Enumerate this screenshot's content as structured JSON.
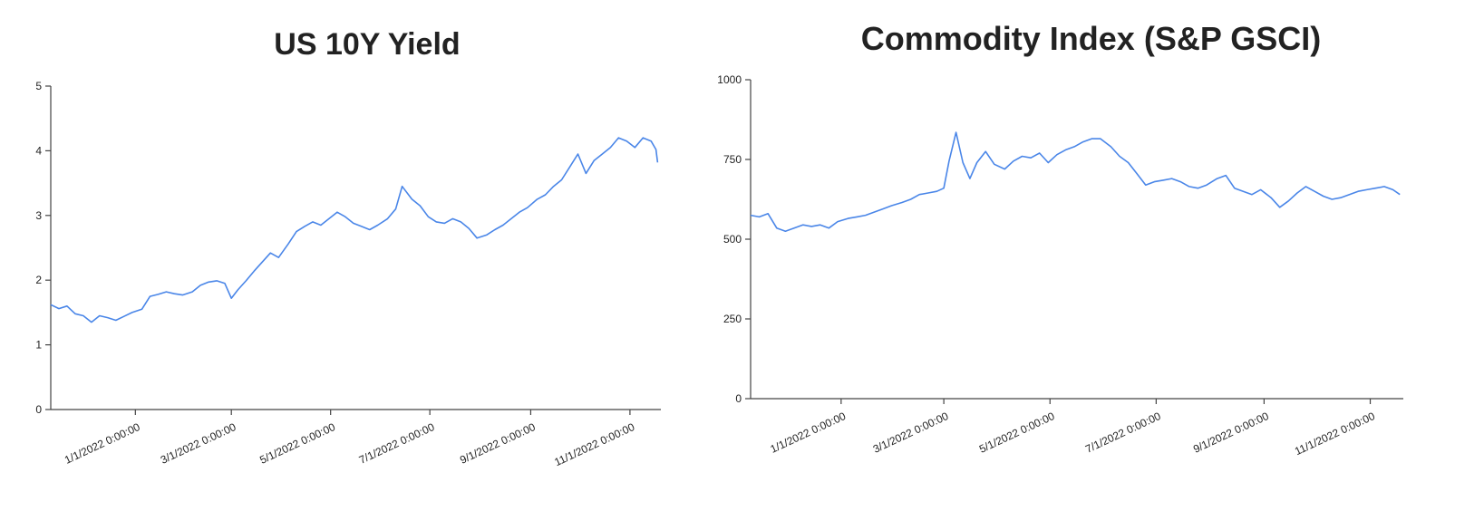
{
  "colors": {
    "series": "#4a86e8",
    "axis": "#444444",
    "text": "#222222"
  },
  "chart_data": [
    {
      "type": "line",
      "title": "US 10Y Yield",
      "xlabel": "",
      "ylabel": "",
      "ylim": [
        0,
        5
      ],
      "xlim": [
        "2021-11-10",
        "2022-11-20"
      ],
      "y_ticks": [
        "0",
        "1",
        "2",
        "3",
        "4",
        "5"
      ],
      "x_ticks": [
        {
          "date": "2022-01-01",
          "label": "1/1/2022 0:00:00"
        },
        {
          "date": "2022-03-01",
          "label": "3/1/2022 0:00:00"
        },
        {
          "date": "2022-05-01",
          "label": "5/1/2022 0:00:00"
        },
        {
          "date": "2022-07-01",
          "label": "7/1/2022 0:00:00"
        },
        {
          "date": "2022-09-01",
          "label": "9/1/2022 0:00:00"
        },
        {
          "date": "2022-11-01",
          "label": "11/1/2022 0:00:00"
        }
      ],
      "grid": false,
      "series": [
        {
          "x": [
            "2021-11-10",
            "2021-11-15",
            "2021-11-20",
            "2021-11-25",
            "2021-11-30",
            "2021-12-05",
            "2021-12-10",
            "2021-12-15",
            "2021-12-20",
            "2021-12-25",
            "2021-12-30",
            "2022-01-05",
            "2022-01-10",
            "2022-01-15",
            "2022-01-20",
            "2022-01-25",
            "2022-01-30",
            "2022-02-05",
            "2022-02-10",
            "2022-02-15",
            "2022-02-20",
            "2022-02-25",
            "2022-03-01",
            "2022-03-05",
            "2022-03-10",
            "2022-03-15",
            "2022-03-20",
            "2022-03-25",
            "2022-03-30",
            "2022-04-05",
            "2022-04-10",
            "2022-04-15",
            "2022-04-20",
            "2022-04-25",
            "2022-04-30",
            "2022-05-05",
            "2022-05-10",
            "2022-05-15",
            "2022-05-20",
            "2022-05-25",
            "2022-05-30",
            "2022-06-05",
            "2022-06-10",
            "2022-06-14",
            "2022-06-20",
            "2022-06-25",
            "2022-06-30",
            "2022-07-05",
            "2022-07-10",
            "2022-07-15",
            "2022-07-20",
            "2022-07-25",
            "2022-07-30",
            "2022-08-05",
            "2022-08-10",
            "2022-08-15",
            "2022-08-20",
            "2022-08-25",
            "2022-08-30",
            "2022-09-05",
            "2022-09-10",
            "2022-09-15",
            "2022-09-20",
            "2022-09-25",
            "2022-09-30",
            "2022-10-05",
            "2022-10-10",
            "2022-10-15",
            "2022-10-20",
            "2022-10-25",
            "2022-10-30",
            "2022-11-04",
            "2022-11-09",
            "2022-11-14",
            "2022-11-17",
            "2022-11-18"
          ],
          "values": [
            1.62,
            1.56,
            1.6,
            1.48,
            1.45,
            1.35,
            1.45,
            1.42,
            1.38,
            1.44,
            1.5,
            1.55,
            1.75,
            1.78,
            1.82,
            1.79,
            1.77,
            1.82,
            1.92,
            1.97,
            1.99,
            1.95,
            1.72,
            1.85,
            1.99,
            2.14,
            2.28,
            2.42,
            2.35,
            2.56,
            2.75,
            2.83,
            2.9,
            2.85,
            2.95,
            3.05,
            2.98,
            2.88,
            2.83,
            2.78,
            2.85,
            2.95,
            3.1,
            3.45,
            3.25,
            3.15,
            2.98,
            2.9,
            2.88,
            2.95,
            2.9,
            2.8,
            2.65,
            2.7,
            2.78,
            2.85,
            2.95,
            3.05,
            3.12,
            3.25,
            3.32,
            3.45,
            3.55,
            3.75,
            3.95,
            3.65,
            3.85,
            3.95,
            4.05,
            4.2,
            4.15,
            4.05,
            4.2,
            4.15,
            4.02,
            3.82
          ]
        }
      ]
    },
    {
      "type": "line",
      "title": "Commodity Index (S&P GSCI)",
      "xlabel": "",
      "ylabel": "",
      "ylim": [
        0,
        1000
      ],
      "xlim": [
        "2021-11-10",
        "2022-11-20"
      ],
      "y_ticks": [
        "0",
        "250",
        "500",
        "750",
        "1000"
      ],
      "x_ticks": [
        {
          "date": "2022-01-01",
          "label": "1/1/2022 0:00:00"
        },
        {
          "date": "2022-03-01",
          "label": "3/1/2022 0:00:00"
        },
        {
          "date": "2022-05-01",
          "label": "5/1/2022 0:00:00"
        },
        {
          "date": "2022-07-01",
          "label": "7/1/2022 0:00:00"
        },
        {
          "date": "2022-09-01",
          "label": "9/1/2022 0:00:00"
        },
        {
          "date": "2022-11-01",
          "label": "11/1/2022 0:00:00"
        }
      ],
      "grid": false,
      "series": [
        {
          "x": [
            "2021-11-10",
            "2021-11-15",
            "2021-11-20",
            "2021-11-25",
            "2021-11-30",
            "2021-12-05",
            "2021-12-10",
            "2021-12-15",
            "2021-12-20",
            "2021-12-25",
            "2021-12-30",
            "2022-01-05",
            "2022-01-10",
            "2022-01-15",
            "2022-01-20",
            "2022-01-25",
            "2022-01-30",
            "2022-02-05",
            "2022-02-10",
            "2022-02-15",
            "2022-02-20",
            "2022-02-25",
            "2022-03-01",
            "2022-03-04",
            "2022-03-08",
            "2022-03-12",
            "2022-03-16",
            "2022-03-20",
            "2022-03-25",
            "2022-03-30",
            "2022-04-05",
            "2022-04-10",
            "2022-04-15",
            "2022-04-20",
            "2022-04-25",
            "2022-04-30",
            "2022-05-05",
            "2022-05-10",
            "2022-05-15",
            "2022-05-20",
            "2022-05-25",
            "2022-05-30",
            "2022-06-05",
            "2022-06-10",
            "2022-06-15",
            "2022-06-20",
            "2022-06-25",
            "2022-06-30",
            "2022-07-05",
            "2022-07-10",
            "2022-07-15",
            "2022-07-20",
            "2022-07-25",
            "2022-07-30",
            "2022-08-05",
            "2022-08-10",
            "2022-08-15",
            "2022-08-20",
            "2022-08-25",
            "2022-08-30",
            "2022-09-05",
            "2022-09-10",
            "2022-09-15",
            "2022-09-20",
            "2022-09-25",
            "2022-09-30",
            "2022-10-05",
            "2022-10-10",
            "2022-10-15",
            "2022-10-20",
            "2022-10-25",
            "2022-10-30",
            "2022-11-04",
            "2022-11-09",
            "2022-11-14",
            "2022-11-18"
          ],
          "values": [
            575,
            570,
            580,
            535,
            525,
            535,
            545,
            540,
            545,
            535,
            555,
            565,
            570,
            575,
            585,
            595,
            605,
            615,
            625,
            640,
            645,
            650,
            660,
            745,
            835,
            740,
            690,
            740,
            775,
            735,
            720,
            745,
            760,
            755,
            770,
            740,
            765,
            780,
            790,
            805,
            815,
            815,
            790,
            760,
            740,
            705,
            670,
            680,
            685,
            690,
            680,
            665,
            660,
            670,
            690,
            700,
            660,
            650,
            640,
            655,
            630,
            600,
            620,
            645,
            665,
            650,
            635,
            625,
            630,
            640,
            650,
            655,
            660,
            665,
            655,
            640
          ]
        }
      ]
    }
  ]
}
